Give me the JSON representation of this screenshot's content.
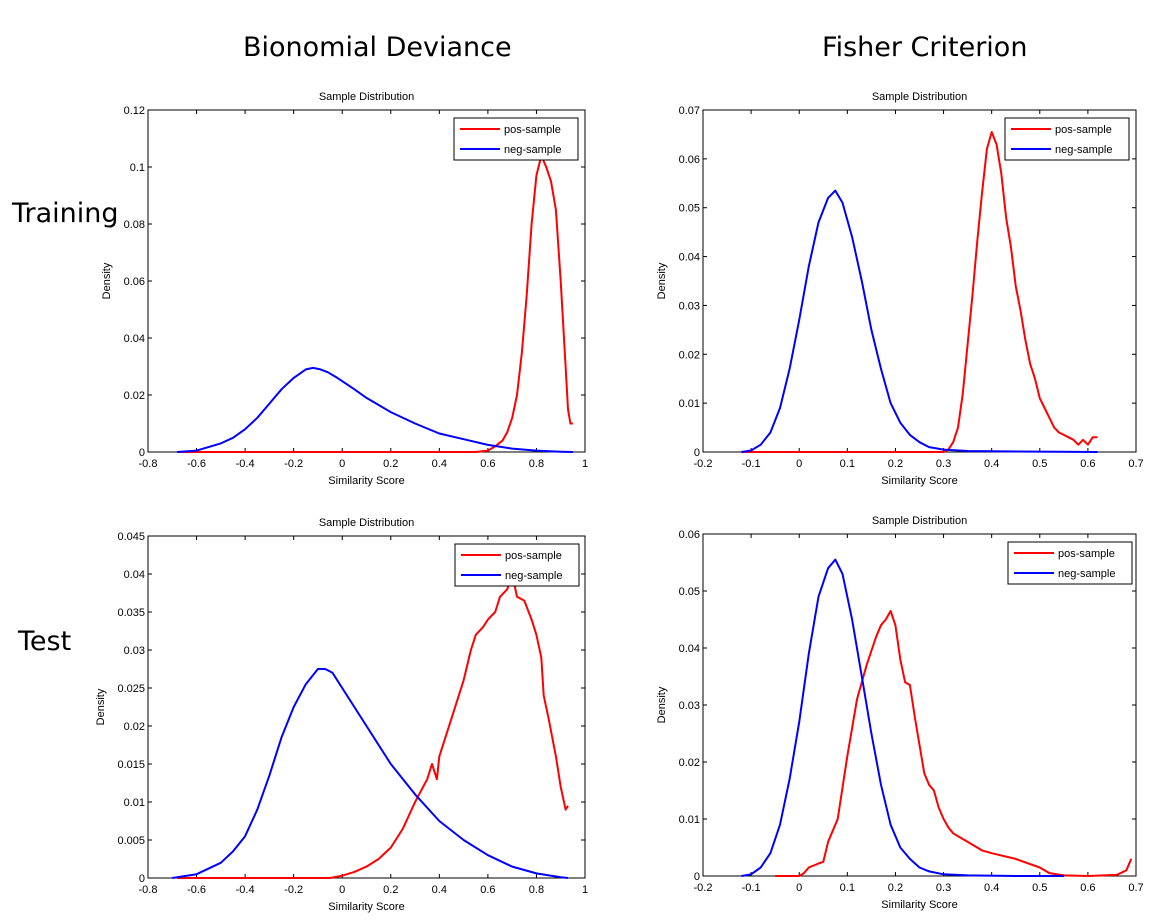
{
  "figure": {
    "column_titles": [
      "Bionomial Deviance",
      "Fisher Criterion"
    ],
    "row_labels": [
      "Training",
      "Test"
    ]
  },
  "colors": {
    "pos": "#ff0000",
    "neg": "#0000ff",
    "axis": "#000000"
  },
  "chart_data": [
    {
      "id": "train-binomial",
      "type": "line",
      "title": "Sample Distribution",
      "xlabel": "Similarity Score",
      "ylabel": "Density",
      "xlim": [
        -0.8,
        1.0
      ],
      "ylim": [
        0,
        0.12
      ],
      "xticks": [
        -0.8,
        -0.6,
        -0.4,
        -0.2,
        0,
        0.2,
        0.4,
        0.6,
        0.8,
        1
      ],
      "xtick_labels": [
        "-0.8",
        "-0.6",
        "-0.4",
        "-0.2",
        "0",
        "0.2",
        "0.4",
        "0.6",
        "0.8",
        "1"
      ],
      "yticks": [
        0,
        0.02,
        0.04,
        0.06,
        0.08,
        0.1,
        0.12
      ],
      "ytick_labels": [
        "0",
        "0.02",
        "0.04",
        "0.06",
        "0.08",
        "0.1",
        "0.12"
      ],
      "legend": "top-right",
      "series": [
        {
          "name": "pos-sample",
          "color": "#ff0000",
          "x": [
            -0.68,
            0.55,
            0.6,
            0.63,
            0.66,
            0.68,
            0.7,
            0.72,
            0.74,
            0.76,
            0.78,
            0.8,
            0.82,
            0.84,
            0.86,
            0.88,
            0.9,
            0.92,
            0.93,
            0.94,
            0.95
          ],
          "y": [
            0,
            0,
            0.0005,
            0.002,
            0.004,
            0.007,
            0.012,
            0.02,
            0.035,
            0.055,
            0.08,
            0.097,
            0.104,
            0.1,
            0.095,
            0.085,
            0.06,
            0.03,
            0.015,
            0.01,
            0.01
          ]
        },
        {
          "name": "neg-sample",
          "color": "#0000ff",
          "x": [
            -0.68,
            -0.6,
            -0.5,
            -0.45,
            -0.4,
            -0.35,
            -0.3,
            -0.25,
            -0.2,
            -0.15,
            -0.12,
            -0.09,
            -0.06,
            -0.02,
            0.05,
            0.1,
            0.2,
            0.3,
            0.4,
            0.5,
            0.6,
            0.7,
            0.8,
            0.9,
            0.95
          ],
          "y": [
            0,
            0.0005,
            0.003,
            0.005,
            0.008,
            0.012,
            0.017,
            0.022,
            0.026,
            0.029,
            0.0295,
            0.029,
            0.028,
            0.026,
            0.022,
            0.019,
            0.014,
            0.01,
            0.0065,
            0.0045,
            0.0025,
            0.0012,
            0.0005,
            0.0001,
            0
          ]
        }
      ]
    },
    {
      "id": "train-fisher",
      "type": "line",
      "title": "Sample Distribution",
      "xlabel": "Similarity Score",
      "ylabel": "Density",
      "xlim": [
        -0.2,
        0.7
      ],
      "ylim": [
        0,
        0.07
      ],
      "xticks": [
        -0.2,
        -0.1,
        0,
        0.1,
        0.2,
        0.3,
        0.4,
        0.5,
        0.6,
        0.7
      ],
      "xtick_labels": [
        "-0.2",
        "-0.1",
        "0",
        "0.1",
        "0.2",
        "0.3",
        "0.4",
        "0.5",
        "0.6",
        "0.7"
      ],
      "yticks": [
        0,
        0.01,
        0.02,
        0.03,
        0.04,
        0.05,
        0.06,
        0.07
      ],
      "ytick_labels": [
        "0",
        "0.01",
        "0.02",
        "0.03",
        "0.04",
        "0.05",
        "0.06",
        "0.07"
      ],
      "legend": "top-right",
      "series": [
        {
          "name": "pos-sample",
          "color": "#ff0000",
          "x": [
            -0.12,
            0.3,
            0.31,
            0.32,
            0.33,
            0.34,
            0.35,
            0.36,
            0.37,
            0.38,
            0.39,
            0.4,
            0.41,
            0.42,
            0.43,
            0.44,
            0.45,
            0.46,
            0.47,
            0.48,
            0.49,
            0.5,
            0.51,
            0.52,
            0.53,
            0.54,
            0.55,
            0.56,
            0.57,
            0.58,
            0.59,
            0.6,
            0.61,
            0.62
          ],
          "y": [
            0,
            0,
            0.0005,
            0.002,
            0.005,
            0.012,
            0.022,
            0.032,
            0.043,
            0.053,
            0.062,
            0.0655,
            0.063,
            0.057,
            0.048,
            0.042,
            0.034,
            0.029,
            0.023,
            0.018,
            0.015,
            0.011,
            0.009,
            0.007,
            0.005,
            0.004,
            0.0035,
            0.003,
            0.0025,
            0.0015,
            0.0025,
            0.0015,
            0.003,
            0.003
          ]
        },
        {
          "name": "neg-sample",
          "color": "#0000ff",
          "x": [
            -0.12,
            -0.1,
            -0.08,
            -0.06,
            -0.04,
            -0.02,
            0,
            0.02,
            0.04,
            0.06,
            0.075,
            0.09,
            0.11,
            0.13,
            0.15,
            0.17,
            0.19,
            0.21,
            0.23,
            0.25,
            0.27,
            0.3,
            0.35,
            0.45,
            0.62
          ],
          "y": [
            0,
            0.0003,
            0.0015,
            0.004,
            0.009,
            0.017,
            0.027,
            0.038,
            0.047,
            0.052,
            0.0535,
            0.051,
            0.044,
            0.035,
            0.025,
            0.017,
            0.01,
            0.006,
            0.0035,
            0.002,
            0.001,
            0.0005,
            0.0002,
            0.0001,
            0
          ]
        }
      ]
    },
    {
      "id": "test-binomial",
      "type": "line",
      "title": "Sample Distribution",
      "xlabel": "Similarity Score",
      "ylabel": "Density",
      "xlim": [
        -0.8,
        1.0
      ],
      "ylim": [
        0,
        0.045
      ],
      "xticks": [
        -0.8,
        -0.6,
        -0.4,
        -0.2,
        0,
        0.2,
        0.4,
        0.6,
        0.8,
        1
      ],
      "xtick_labels": [
        "-0.8",
        "-0.6",
        "-0.4",
        "-0.2",
        "0",
        "0.2",
        "0.4",
        "0.6",
        "0.8",
        "1"
      ],
      "yticks": [
        0,
        0.005,
        0.01,
        0.015,
        0.02,
        0.025,
        0.03,
        0.035,
        0.04,
        0.045
      ],
      "ytick_labels": [
        "0",
        "0.005",
        "0.01",
        "0.015",
        "0.02",
        "0.025",
        "0.03",
        "0.035",
        "0.04",
        "0.045"
      ],
      "legend": "top-right",
      "series": [
        {
          "name": "pos-sample",
          "color": "#ff0000",
          "x": [
            -0.68,
            -0.05,
            0,
            0.05,
            0.1,
            0.15,
            0.2,
            0.25,
            0.3,
            0.35,
            0.37,
            0.39,
            0.4,
            0.42,
            0.45,
            0.5,
            0.53,
            0.55,
            0.58,
            0.6,
            0.63,
            0.65,
            0.68,
            0.7,
            0.72,
            0.75,
            0.78,
            0.8,
            0.82,
            0.83,
            0.85,
            0.88,
            0.9,
            0.92,
            0.93
          ],
          "y": [
            0,
            0,
            0.0003,
            0.0008,
            0.0015,
            0.0025,
            0.004,
            0.0065,
            0.01,
            0.013,
            0.015,
            0.013,
            0.016,
            0.018,
            0.021,
            0.026,
            0.03,
            0.032,
            0.033,
            0.034,
            0.035,
            0.037,
            0.038,
            0.04,
            0.037,
            0.0365,
            0.034,
            0.032,
            0.029,
            0.024,
            0.021,
            0.016,
            0.012,
            0.009,
            0.0095
          ]
        },
        {
          "name": "neg-sample",
          "color": "#0000ff",
          "x": [
            -0.7,
            -0.6,
            -0.5,
            -0.45,
            -0.4,
            -0.35,
            -0.3,
            -0.25,
            -0.2,
            -0.15,
            -0.1,
            -0.07,
            -0.04,
            0,
            0.1,
            0.2,
            0.3,
            0.4,
            0.5,
            0.6,
            0.7,
            0.8,
            0.9,
            0.93
          ],
          "y": [
            0,
            0.0005,
            0.002,
            0.0035,
            0.0055,
            0.009,
            0.0135,
            0.0185,
            0.0225,
            0.0255,
            0.0275,
            0.0275,
            0.027,
            0.025,
            0.02,
            0.015,
            0.011,
            0.0075,
            0.005,
            0.003,
            0.0015,
            0.0006,
            0.0001,
            0
          ]
        }
      ]
    },
    {
      "id": "test-fisher",
      "type": "line",
      "title": "Sample Distribution",
      "xlabel": "Similarity Score",
      "ylabel": "Density",
      "xlim": [
        -0.2,
        0.7
      ],
      "ylim": [
        0,
        0.06
      ],
      "xticks": [
        -0.2,
        -0.1,
        0,
        0.1,
        0.2,
        0.3,
        0.4,
        0.5,
        0.6,
        0.7
      ],
      "xtick_labels": [
        "-0.2",
        "-0.1",
        "0",
        "0.1",
        "0.2",
        "0.3",
        "0.4",
        "0.5",
        "0.6",
        "0.7"
      ],
      "yticks": [
        0,
        0.01,
        0.02,
        0.03,
        0.04,
        0.05,
        0.06
      ],
      "ytick_labels": [
        "0",
        "0.01",
        "0.02",
        "0.03",
        "0.04",
        "0.05",
        "0.06"
      ],
      "legend": "top-right",
      "series": [
        {
          "name": "pos-sample",
          "color": "#ff0000",
          "x": [
            -0.05,
            0,
            0.01,
            0.02,
            0.04,
            0.05,
            0.06,
            0.08,
            0.1,
            0.12,
            0.14,
            0.16,
            0.17,
            0.18,
            0.19,
            0.2,
            0.21,
            0.22,
            0.23,
            0.24,
            0.25,
            0.26,
            0.27,
            0.28,
            0.29,
            0.3,
            0.31,
            0.32,
            0.34,
            0.36,
            0.38,
            0.4,
            0.45,
            0.5,
            0.52,
            0.55,
            0.6,
            0.66,
            0.68,
            0.69
          ],
          "y": [
            0,
            0,
            0.0005,
            0.0015,
            0.0022,
            0.0025,
            0.006,
            0.01,
            0.021,
            0.031,
            0.037,
            0.042,
            0.044,
            0.045,
            0.0465,
            0.044,
            0.038,
            0.034,
            0.0335,
            0.028,
            0.023,
            0.018,
            0.016,
            0.015,
            0.012,
            0.01,
            0.0085,
            0.0075,
            0.0065,
            0.0055,
            0.0045,
            0.004,
            0.003,
            0.0015,
            0.0005,
            0.0001,
            0,
            0.0002,
            0.001,
            0.003
          ]
        },
        {
          "name": "neg-sample",
          "color": "#0000ff",
          "x": [
            -0.12,
            -0.1,
            -0.08,
            -0.06,
            -0.04,
            -0.02,
            0,
            0.02,
            0.04,
            0.06,
            0.075,
            0.09,
            0.11,
            0.13,
            0.15,
            0.17,
            0.19,
            0.21,
            0.23,
            0.25,
            0.27,
            0.3,
            0.35,
            0.45,
            0.55
          ],
          "y": [
            0,
            0.0003,
            0.0015,
            0.004,
            0.009,
            0.017,
            0.027,
            0.039,
            0.049,
            0.054,
            0.0555,
            0.053,
            0.045,
            0.035,
            0.025,
            0.016,
            0.009,
            0.005,
            0.003,
            0.0015,
            0.0008,
            0.0003,
            0.0001,
            0,
            0
          ]
        }
      ]
    }
  ]
}
